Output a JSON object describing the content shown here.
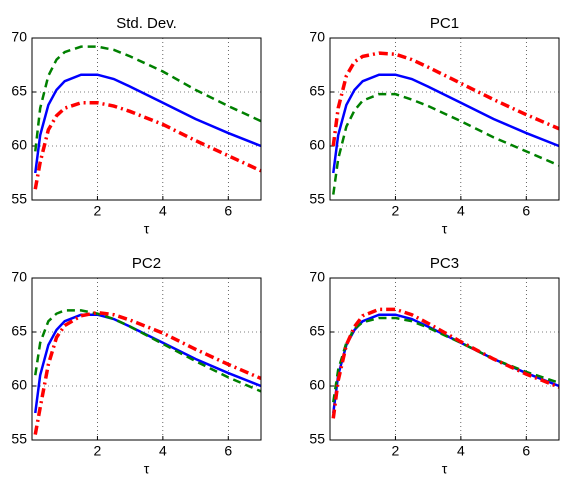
{
  "chart_data": [
    {
      "type": "line",
      "title": "Std. Dev.",
      "xlabel": "τ",
      "x": [
        0.1,
        0.25,
        0.5,
        0.75,
        1,
        1.5,
        2,
        2.5,
        3,
        4,
        5,
        6,
        7
      ],
      "series": [
        {
          "color": "#0000ff",
          "linestyle": "solid",
          "values": [
            57.5,
            61,
            63.8,
            65.2,
            66,
            66.6,
            66.6,
            66.2,
            65.5,
            64,
            62.5,
            61.2,
            60
          ]
        },
        {
          "color": "#008000",
          "linestyle": "dashed",
          "values": [
            59.5,
            63.5,
            66.5,
            68,
            68.7,
            69.2,
            69.2,
            68.9,
            68.3,
            66.9,
            65.2,
            63.7,
            62.3
          ]
        },
        {
          "color": "#ff0000",
          "linestyle": "dashdot",
          "values": [
            56,
            58.5,
            61.5,
            62.8,
            63.5,
            64,
            64,
            63.7,
            63.2,
            62,
            60.5,
            59.1,
            57.7
          ]
        }
      ],
      "xlim": [
        0,
        7
      ],
      "ylim": [
        55,
        70
      ],
      "xticks": [
        2,
        4,
        6
      ],
      "yticks": [
        55,
        60,
        65,
        70
      ],
      "grid": true
    },
    {
      "type": "line",
      "title": "PC1",
      "xlabel": "τ",
      "x": [
        0.1,
        0.25,
        0.5,
        0.75,
        1,
        1.5,
        2,
        2.5,
        3,
        4,
        5,
        6,
        7
      ],
      "series": [
        {
          "color": "#0000ff",
          "linestyle": "solid",
          "values": [
            57.5,
            61,
            63.8,
            65.2,
            66,
            66.6,
            66.6,
            66.2,
            65.5,
            64,
            62.5,
            61.2,
            60
          ]
        },
        {
          "color": "#008000",
          "linestyle": "dashed",
          "values": [
            55.5,
            58.8,
            61.8,
            63.3,
            64.2,
            64.8,
            64.8,
            64.3,
            63.7,
            62.3,
            60.8,
            59.5,
            58.2
          ]
        },
        {
          "color": "#ff0000",
          "linestyle": "dashdot",
          "values": [
            60,
            63.5,
            66.5,
            67.8,
            68.3,
            68.6,
            68.5,
            68,
            67.3,
            65.8,
            64.3,
            62.9,
            61.6
          ]
        }
      ],
      "xlim": [
        0,
        7
      ],
      "ylim": [
        55,
        70
      ],
      "xticks": [
        2,
        4,
        6
      ],
      "yticks": [
        55,
        60,
        65,
        70
      ],
      "grid": true
    },
    {
      "type": "line",
      "title": "PC2",
      "xlabel": "τ",
      "x": [
        0.1,
        0.25,
        0.5,
        0.75,
        1,
        1.5,
        2,
        2.5,
        3,
        4,
        5,
        6,
        7
      ],
      "series": [
        {
          "color": "#0000ff",
          "linestyle": "solid",
          "values": [
            57.5,
            61,
            63.8,
            65.2,
            66,
            66.6,
            66.6,
            66.2,
            65.5,
            64,
            62.5,
            61.2,
            60
          ]
        },
        {
          "color": "#008000",
          "linestyle": "dashed",
          "values": [
            61,
            64,
            66,
            66.7,
            67,
            67,
            66.7,
            66.2,
            65.5,
            63.9,
            62.3,
            60.8,
            59.5
          ]
        },
        {
          "color": "#ff0000",
          "linestyle": "dashdot",
          "values": [
            55.5,
            58,
            62,
            64.5,
            65.6,
            66.5,
            66.8,
            66.6,
            66.1,
            64.9,
            63.4,
            62,
            60.7
          ]
        }
      ],
      "xlim": [
        0,
        7
      ],
      "ylim": [
        55,
        70
      ],
      "xticks": [
        2,
        4,
        6
      ],
      "yticks": [
        55,
        60,
        65,
        70
      ],
      "grid": true
    },
    {
      "type": "line",
      "title": "PC3",
      "xlabel": "τ",
      "x": [
        0.1,
        0.25,
        0.5,
        0.75,
        1,
        1.5,
        2,
        2.5,
        3,
        4,
        5,
        6,
        7
      ],
      "series": [
        {
          "color": "#0000ff",
          "linestyle": "solid",
          "values": [
            57.5,
            61,
            63.8,
            65.2,
            66,
            66.6,
            66.6,
            66.2,
            65.5,
            64,
            62.5,
            61.2,
            60
          ]
        },
        {
          "color": "#008000",
          "linestyle": "dashed",
          "values": [
            58.5,
            61.5,
            64,
            65.3,
            65.9,
            66.3,
            66.3,
            66,
            65.4,
            64,
            62.5,
            61.3,
            60.3
          ]
        },
        {
          "color": "#ff0000",
          "linestyle": "dashdot",
          "values": [
            57,
            60.5,
            63.8,
            65.5,
            66.5,
            67.1,
            67.1,
            66.6,
            65.8,
            64.1,
            62.5,
            61.1,
            59.9
          ]
        }
      ],
      "xlim": [
        0,
        7
      ],
      "ylim": [
        55,
        70
      ],
      "xticks": [
        2,
        4,
        6
      ],
      "yticks": [
        55,
        60,
        65,
        70
      ],
      "grid": true
    }
  ]
}
